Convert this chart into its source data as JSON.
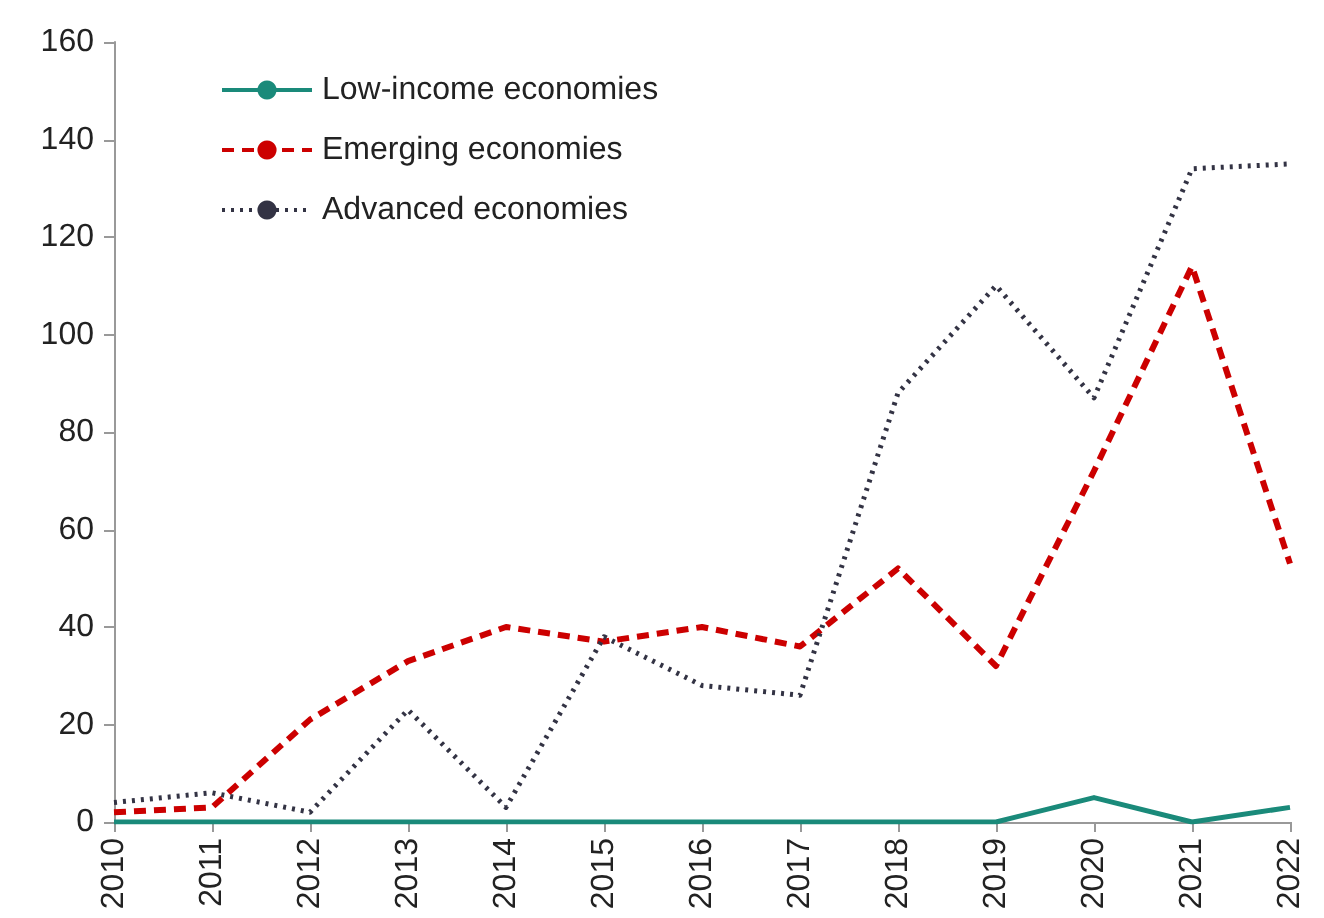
{
  "chart_data": {
    "type": "line",
    "categories": [
      "2010",
      "2011",
      "2012",
      "2013",
      "2014",
      "2015",
      "2016",
      "2017",
      "2018",
      "2019",
      "2020",
      "2021",
      "2022"
    ],
    "series": [
      {
        "name": "Low-income economies",
        "color": "#1a8a7a",
        "line_style": "solid",
        "values": [
          0,
          0,
          0,
          0,
          0,
          0,
          0,
          0,
          0,
          0,
          5,
          0,
          3
        ]
      },
      {
        "name": "Emerging economies",
        "color": "#cc0000",
        "line_style": "dashed",
        "values": [
          2,
          3,
          21,
          33,
          40,
          37,
          40,
          36,
          52,
          32,
          72,
          114,
          53
        ]
      },
      {
        "name": "Advanced economies",
        "color": "#333344",
        "line_style": "dotted",
        "values": [
          4,
          6,
          2,
          23,
          3,
          38,
          28,
          26,
          88,
          110,
          87,
          134,
          135
        ]
      }
    ],
    "ylim": [
      0,
      160
    ],
    "yticks": [
      0,
      20,
      40,
      60,
      80,
      100,
      120,
      140,
      160
    ],
    "grid": false,
    "legend": "top left",
    "marker": "none"
  }
}
